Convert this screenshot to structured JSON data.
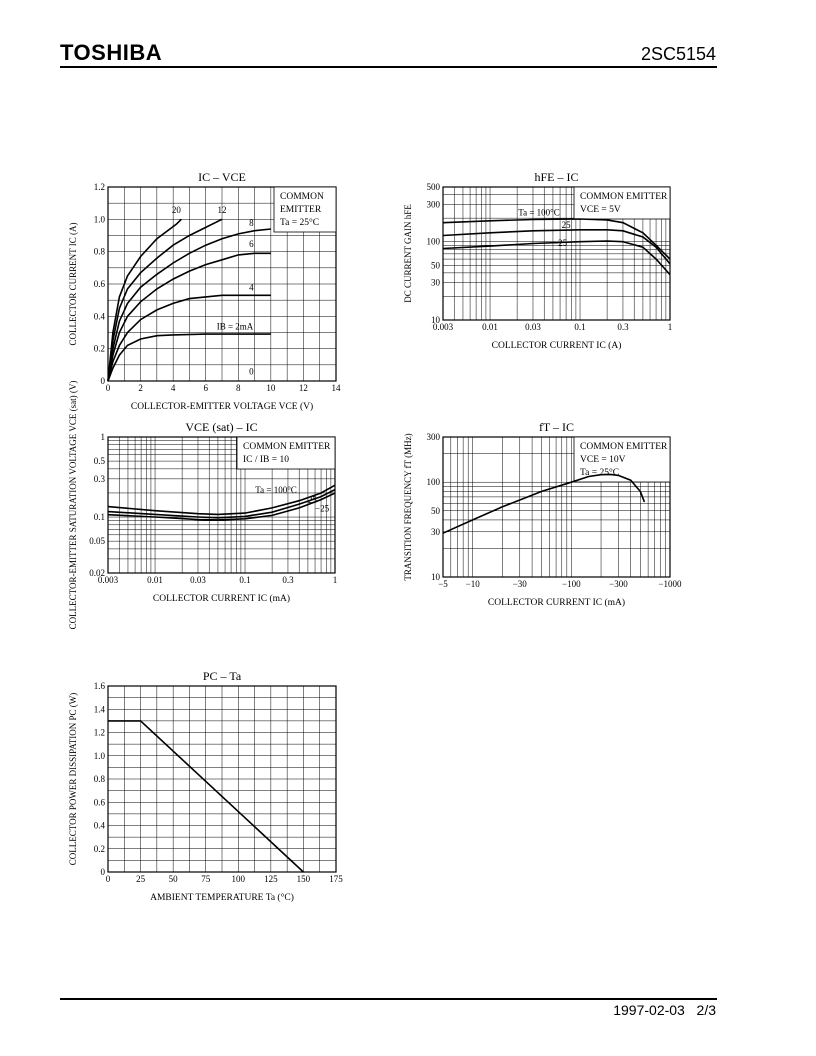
{
  "header": {
    "brand": "TOSHIBA",
    "part_number": "2SC5154"
  },
  "footer": {
    "date": "1997-02-03",
    "page": "2/3"
  },
  "chart_data": [
    {
      "id": "ic-vce",
      "type": "line",
      "title": "IC – VCE",
      "xlabel": "COLLECTOR-EMITTER VOLTAGE  VCE  (V)",
      "ylabel": "COLLECTOR CURRENT  IC  (A)",
      "xlim": [
        0,
        14
      ],
      "ylim": [
        0,
        1.2
      ],
      "xticks": [
        0,
        2,
        4,
        6,
        8,
        10,
        12,
        14
      ],
      "yticks": [
        0,
        0.2,
        0.4,
        0.6,
        0.8,
        1.0,
        1.2
      ],
      "yticklabels": [
        "0",
        "0.2",
        "0.4",
        "0.6",
        "0.8",
        "1.0",
        "1.2"
      ],
      "legend": [
        "COMMON",
        "EMITTER",
        "Ta = 25°C"
      ],
      "series": [
        {
          "name": "20",
          "points": [
            [
              0,
              0
            ],
            [
              0.3,
              0.3
            ],
            [
              0.7,
              0.52
            ],
            [
              1.2,
              0.65
            ],
            [
              2,
              0.77
            ],
            [
              3,
              0.88
            ],
            [
              4.2,
              0.97
            ],
            [
              4.5,
              1.0
            ]
          ]
        },
        {
          "name": "12",
          "points": [
            [
              0,
              0
            ],
            [
              0.3,
              0.25
            ],
            [
              0.7,
              0.45
            ],
            [
              1.2,
              0.57
            ],
            [
              2,
              0.67
            ],
            [
              3,
              0.76
            ],
            [
              4,
              0.84
            ],
            [
              5,
              0.9
            ],
            [
              6,
              0.95
            ],
            [
              7,
              1.0
            ]
          ]
        },
        {
          "name": "8",
          "points": [
            [
              0,
              0
            ],
            [
              0.3,
              0.2
            ],
            [
              0.7,
              0.37
            ],
            [
              1.2,
              0.48
            ],
            [
              2,
              0.58
            ],
            [
              3,
              0.66
            ],
            [
              4,
              0.73
            ],
            [
              5,
              0.79
            ],
            [
              6,
              0.84
            ],
            [
              7,
              0.88
            ],
            [
              8,
              0.91
            ],
            [
              9,
              0.93
            ],
            [
              10,
              0.94
            ]
          ]
        },
        {
          "name": "6",
          "points": [
            [
              0,
              0
            ],
            [
              0.3,
              0.16
            ],
            [
              0.7,
              0.3
            ],
            [
              1.2,
              0.4
            ],
            [
              2,
              0.49
            ],
            [
              3,
              0.57
            ],
            [
              4,
              0.63
            ],
            [
              5,
              0.68
            ],
            [
              6,
              0.72
            ],
            [
              7,
              0.75
            ],
            [
              8,
              0.78
            ],
            [
              9,
              0.79
            ],
            [
              10,
              0.79
            ]
          ]
        },
        {
          "name": "4",
          "points": [
            [
              0,
              0
            ],
            [
              0.3,
              0.12
            ],
            [
              0.7,
              0.22
            ],
            [
              1.2,
              0.3
            ],
            [
              2,
              0.38
            ],
            [
              3,
              0.44
            ],
            [
              4,
              0.48
            ],
            [
              5,
              0.51
            ],
            [
              6,
              0.52
            ],
            [
              7,
              0.53
            ],
            [
              8,
              0.53
            ],
            [
              10,
              0.53
            ]
          ]
        },
        {
          "name": "IB = 2mA",
          "points": [
            [
              0,
              0
            ],
            [
              0.3,
              0.08
            ],
            [
              0.7,
              0.16
            ],
            [
              1.2,
              0.22
            ],
            [
              2,
              0.26
            ],
            [
              3,
              0.28
            ],
            [
              4,
              0.285
            ],
            [
              6,
              0.29
            ],
            [
              10,
              0.29
            ]
          ]
        }
      ],
      "curve_labels": [
        {
          "text": "20",
          "x": 4.2,
          "y": 1.04
        },
        {
          "text": "12",
          "x": 7.0,
          "y": 1.04
        },
        {
          "text": "8",
          "x": 8.8,
          "y": 0.96
        },
        {
          "text": "6",
          "x": 8.8,
          "y": 0.83
        },
        {
          "text": "4",
          "x": 8.8,
          "y": 0.56
        },
        {
          "text": "IB = 2mA",
          "x": 7.8,
          "y": 0.32
        },
        {
          "text": "0",
          "x": 8.8,
          "y": 0.04
        }
      ]
    },
    {
      "id": "hfe-ic",
      "type": "line",
      "title": "hFE – IC",
      "xlabel": "COLLECTOR CURRENT  IC  (A)",
      "ylabel": "DC CURRENT GAIN  hFE",
      "xscale": "log",
      "yscale": "log",
      "xlim": [
        0.003,
        1
      ],
      "ylim": [
        10,
        500
      ],
      "xticks": [
        0.003,
        0.01,
        0.03,
        0.1,
        0.3,
        1
      ],
      "xticklabels": [
        "0.003",
        "0.01",
        "0.03",
        "0.1",
        "0.3",
        "1"
      ],
      "yticks": [
        10,
        30,
        50,
        100,
        300,
        500
      ],
      "yticklabels": [
        "10",
        "30",
        "50",
        "100",
        "300",
        "500"
      ],
      "legend": [
        "COMMON EMITTER",
        "VCE = 5V"
      ],
      "series": [
        {
          "name": "Ta = 100°C",
          "points": [
            [
              0.003,
              175
            ],
            [
              0.01,
              185
            ],
            [
              0.03,
              192
            ],
            [
              0.1,
              195
            ],
            [
              0.2,
              190
            ],
            [
              0.3,
              175
            ],
            [
              0.5,
              130
            ],
            [
              0.7,
              90
            ],
            [
              1,
              60
            ]
          ]
        },
        {
          "name": "25",
          "points": [
            [
              0.003,
              120
            ],
            [
              0.01,
              130
            ],
            [
              0.03,
              138
            ],
            [
              0.1,
              142
            ],
            [
              0.2,
              142
            ],
            [
              0.3,
              138
            ],
            [
              0.5,
              115
            ],
            [
              0.7,
              85
            ],
            [
              1,
              52
            ]
          ]
        },
        {
          "name": "−25",
          "points": [
            [
              0.003,
              82
            ],
            [
              0.01,
              88
            ],
            [
              0.03,
              95
            ],
            [
              0.1,
              100
            ],
            [
              0.2,
              102
            ],
            [
              0.3,
              100
            ],
            [
              0.5,
              85
            ],
            [
              0.7,
              60
            ],
            [
              1,
              38
            ]
          ]
        }
      ]
    },
    {
      "id": "vcesat-ic",
      "type": "line",
      "title": "VCE (sat) – IC",
      "xlabel": "COLLECTOR CURRENT  IC  (mA)",
      "ylabel": "COLLECTOR-EMITTER SATURATION VOLTAGE  VCE (sat)  (V)",
      "xscale": "log",
      "yscale": "log",
      "xlim": [
        0.003,
        1
      ],
      "ylim": [
        0.02,
        1
      ],
      "xticks": [
        0.003,
        0.01,
        0.03,
        0.1,
        0.3,
        1
      ],
      "xticklabels": [
        "0.003",
        "0.01",
        "0.03",
        "0.1",
        "0.3",
        "1"
      ],
      "yticks": [
        0.02,
        0.05,
        0.1,
        0.3,
        0.5,
        1
      ],
      "yticklabels": [
        "0.02",
        "0.05",
        "0.1",
        "0.3",
        "0.5",
        "1"
      ],
      "legend": [
        "COMMON EMITTER",
        "IC / IB = 10"
      ],
      "series": [
        {
          "name": "Ta = 100°C",
          "points": [
            [
              0.003,
              0.135
            ],
            [
              0.01,
              0.12
            ],
            [
              0.03,
              0.11
            ],
            [
              0.05,
              0.108
            ],
            [
              0.1,
              0.112
            ],
            [
              0.2,
              0.13
            ],
            [
              0.4,
              0.16
            ],
            [
              0.7,
              0.2
            ],
            [
              1,
              0.25
            ]
          ]
        },
        {
          "name": "25",
          "points": [
            [
              0.003,
              0.117
            ],
            [
              0.01,
              0.108
            ],
            [
              0.03,
              0.1
            ],
            [
              0.05,
              0.098
            ],
            [
              0.1,
              0.102
            ],
            [
              0.2,
              0.115
            ],
            [
              0.4,
              0.145
            ],
            [
              0.7,
              0.18
            ],
            [
              1,
              0.22
            ]
          ]
        },
        {
          "name": "−25",
          "points": [
            [
              0.003,
              0.107
            ],
            [
              0.01,
              0.1
            ],
            [
              0.03,
              0.093
            ],
            [
              0.05,
              0.092
            ],
            [
              0.1,
              0.095
            ],
            [
              0.2,
              0.105
            ],
            [
              0.4,
              0.13
            ],
            [
              0.7,
              0.165
            ],
            [
              1,
              0.2
            ]
          ]
        }
      ]
    },
    {
      "id": "ft-ic",
      "type": "line",
      "title": "fT – IC",
      "xlabel": "COLLECTOR CURRENT  IC  (mA)",
      "ylabel": "TRANSITION FREQUENCY  fT  (MHz)",
      "xscale": "log",
      "yscale": "log",
      "xlim": [
        -5,
        -1000
      ],
      "ylim": [
        10,
        300
      ],
      "xticks": [
        -5,
        -10,
        -30,
        -100,
        -300,
        -1000
      ],
      "xticklabels": [
        "−5",
        "−10",
        "−30",
        "−100",
        "−300",
        "−1000"
      ],
      "yticks": [
        10,
        30,
        50,
        100,
        300
      ],
      "yticklabels": [
        "10",
        "30",
        "50",
        "100",
        "300"
      ],
      "legend": [
        "COMMON EMITTER",
        "VCE = 10V",
        "Ta = 25°C"
      ],
      "series": [
        {
          "name": "",
          "points": [
            [
              -5,
              29
            ],
            [
              -10,
              40
            ],
            [
              -20,
              55
            ],
            [
              -30,
              65
            ],
            [
              -50,
              80
            ],
            [
              -100,
              100
            ],
            [
              -150,
              115
            ],
            [
              -200,
              120
            ],
            [
              -250,
              121
            ],
            [
              -300,
              118
            ],
            [
              -400,
              105
            ],
            [
              -500,
              80
            ],
            [
              -550,
              62
            ]
          ]
        }
      ]
    },
    {
      "id": "pc-ta",
      "type": "line",
      "title": "PC – Ta",
      "xlabel": "AMBIENT TEMPERATURE  Ta  (°C)",
      "ylabel": "COLLECTOR POWER DISSIPATION  PC  (W)",
      "xlim": [
        0,
        175
      ],
      "ylim": [
        0,
        1.6
      ],
      "xticks": [
        0,
        25,
        50,
        75,
        100,
        125,
        150,
        175
      ],
      "yticks": [
        0,
        0.2,
        0.4,
        0.6,
        0.8,
        1.0,
        1.2,
        1.4,
        1.6
      ],
      "yticklabels": [
        "0",
        "0.2",
        "0.4",
        "0.6",
        "0.8",
        "1.0",
        "1.2",
        "1.4",
        "1.6"
      ],
      "series": [
        {
          "name": "",
          "points": [
            [
              0,
              1.3
            ],
            [
              25,
              1.3
            ],
            [
              150,
              0
            ]
          ]
        }
      ]
    }
  ]
}
